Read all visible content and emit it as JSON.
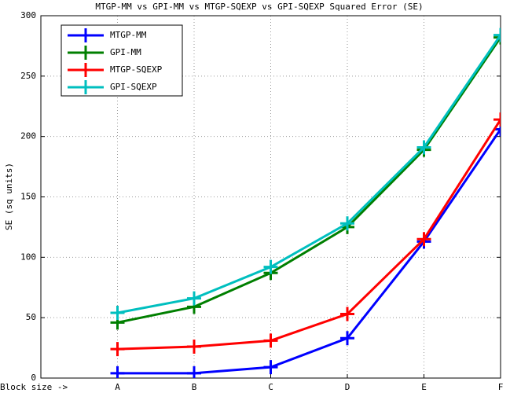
{
  "chart_data": {
    "type": "line",
    "title": "MTGP-MM vs GPI-MM vs MTGP-SQEXP vs GPI-SQEXP Squared Error (SE)",
    "y_label": "SE (sq units)",
    "categories": [
      "Block size ->",
      "A",
      "B",
      "C",
      "D",
      "E",
      "F"
    ],
    "series": [
      {
        "name": "MTGP-MM",
        "color": "#0000ff",
        "values": [
          null,
          4,
          4,
          9,
          33,
          113,
          206
        ]
      },
      {
        "name": "GPI-MM",
        "color": "#007f00",
        "values": [
          null,
          46,
          59,
          87,
          125,
          189,
          282
        ]
      },
      {
        "name": "MTGP-SQEXP",
        "color": "#ff0000",
        "values": [
          null,
          24,
          26,
          31,
          53,
          115,
          214
        ]
      },
      {
        "name": "GPI-SQEXP",
        "color": "#00bfbf",
        "values": [
          null,
          54,
          66,
          92,
          128,
          191,
          284
        ]
      }
    ],
    "ylim": [
      0,
      300
    ],
    "yticks": [
      0,
      50,
      100,
      150,
      200,
      250,
      300
    ],
    "grid": true,
    "legend": "top-left"
  }
}
